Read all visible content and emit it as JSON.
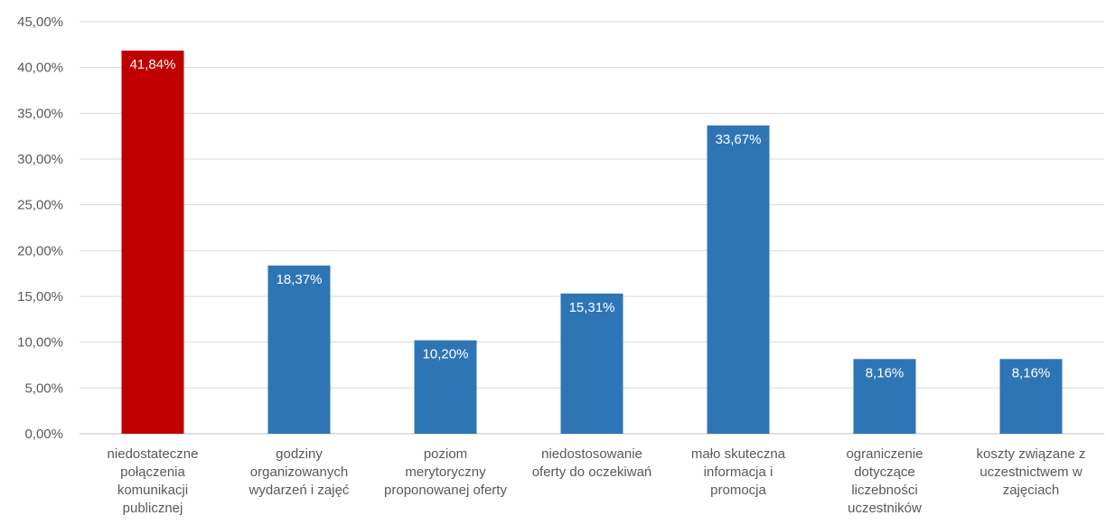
{
  "chart_data": {
    "type": "bar",
    "title": "",
    "xlabel": "",
    "ylabel": "",
    "ylim": [
      0,
      45
    ],
    "ytick_step": 5,
    "ytick_format": "percent-2-comma",
    "grid": true,
    "legend": "none",
    "categories": [
      [
        "niedostateczne",
        "połączenia",
        "komunikacji",
        "publicznej"
      ],
      [
        "godziny",
        "organizowanych",
        "wydarzeń i zajęć"
      ],
      [
        "poziom",
        "merytoryczny",
        "proponowanej oferty"
      ],
      [
        "niedostosowanie",
        "oferty do oczekiwań"
      ],
      [
        "mało skuteczna",
        "informacja i",
        "promocja"
      ],
      [
        "ograniczenie",
        "dotyczące",
        "liczebności",
        "uczestników"
      ],
      [
        "koszty związane z",
        "uczestnictwem w",
        "zajęciach"
      ]
    ],
    "values": [
      41.84,
      18.37,
      10.2,
      15.31,
      33.67,
      8.16,
      8.16
    ],
    "data_labels": [
      "41,84%",
      "18,37%",
      "10,20%",
      "15,31%",
      "33,67%",
      "8,16%",
      "8,16%"
    ],
    "y_tick_labels": [
      "0,00%",
      "5,00%",
      "10,00%",
      "15,00%",
      "20,00%",
      "25,00%",
      "30,00%",
      "35,00%",
      "40,00%",
      "45,00%"
    ],
    "colors": [
      "#c00000",
      "#2e75b6",
      "#2e75b6",
      "#2e75b6",
      "#2e75b6",
      "#2e75b6",
      "#2e75b6"
    ]
  }
}
